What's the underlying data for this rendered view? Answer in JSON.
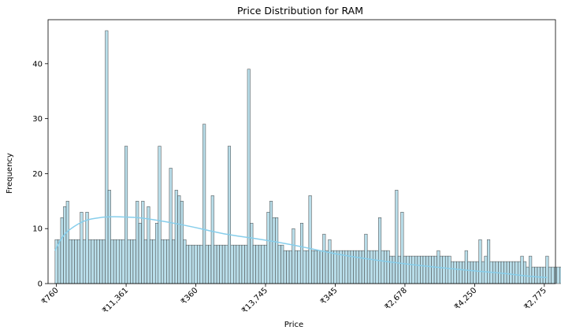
{
  "chart_data": {
    "type": "bar",
    "title": "Price Distribution for RAM",
    "xlabel": "Price",
    "ylabel": "Frequency",
    "ylim": [
      0,
      48
    ],
    "yticks": [
      0,
      10,
      20,
      30,
      40
    ],
    "xtick_labels": [
      "₹760",
      "₹11,361",
      "₹360",
      "₹13,745",
      "₹345",
      "₹2,678",
      "₹4,250",
      "₹2,775"
    ],
    "xtick_positions": [
      0,
      25,
      50,
      75,
      100,
      125,
      150,
      175
    ],
    "x_range": [
      -3,
      179
    ],
    "bin_width": 1,
    "values": [
      8,
      8,
      12,
      14,
      15,
      8,
      8,
      8,
      8,
      13,
      8,
      13,
      8,
      8,
      8,
      8,
      8,
      8,
      46,
      17,
      8,
      8,
      8,
      8,
      8,
      25,
      8,
      8,
      8,
      15,
      11,
      15,
      8,
      14,
      8,
      8,
      11,
      25,
      8,
      8,
      8,
      21,
      8,
      17,
      16,
      15,
      8,
      7,
      7,
      7,
      7,
      7,
      7,
      29,
      7,
      7,
      16,
      7,
      7,
      7,
      7,
      7,
      25,
      7,
      7,
      7,
      7,
      7,
      7,
      39,
      11,
      7,
      7,
      7,
      7,
      7,
      13,
      15,
      12,
      12,
      7,
      7,
      6,
      6,
      6,
      10,
      6,
      6,
      11,
      6,
      6,
      16,
      6,
      6,
      6,
      6,
      9,
      6,
      8,
      6,
      6,
      6,
      6,
      6,
      6,
      6,
      6,
      6,
      6,
      6,
      6,
      9,
      6,
      6,
      6,
      6,
      12,
      6,
      6,
      6,
      5,
      5,
      17,
      5,
      13,
      5,
      5,
      5,
      5,
      5,
      5,
      5,
      5,
      5,
      5,
      5,
      5,
      6,
      5,
      5,
      5,
      5,
      4,
      4,
      4,
      4,
      4,
      6,
      4,
      4,
      4,
      4,
      8,
      4,
      5,
      8,
      4,
      4,
      4,
      4,
      4,
      4,
      4,
      4,
      4,
      4,
      4,
      5,
      4,
      3,
      5,
      3,
      3,
      3,
      3,
      3,
      5,
      3,
      3,
      3,
      3,
      3,
      3,
      3,
      3
    ],
    "kde_line": {
      "x": [
        -0.5,
        2,
        5,
        10,
        15,
        20,
        25,
        30,
        40,
        50,
        60,
        70,
        80,
        90,
        100,
        110,
        120,
        130,
        140,
        150,
        160,
        170,
        176
      ],
      "y": [
        6,
        8.5,
        10,
        11.5,
        12,
        12.2,
        12.1,
        12,
        11.2,
        10.2,
        9,
        8.3,
        7.5,
        6.5,
        5.4,
        4.6,
        3.9,
        3.3,
        2.8,
        2.3,
        1.9,
        1.3,
        1.1
      ]
    },
    "colors": {
      "bar_fill": "#add8e6",
      "bar_edge": "#444444",
      "kde": "#87ceeb",
      "axis": "#000000"
    },
    "grid": false,
    "legend": "none"
  }
}
